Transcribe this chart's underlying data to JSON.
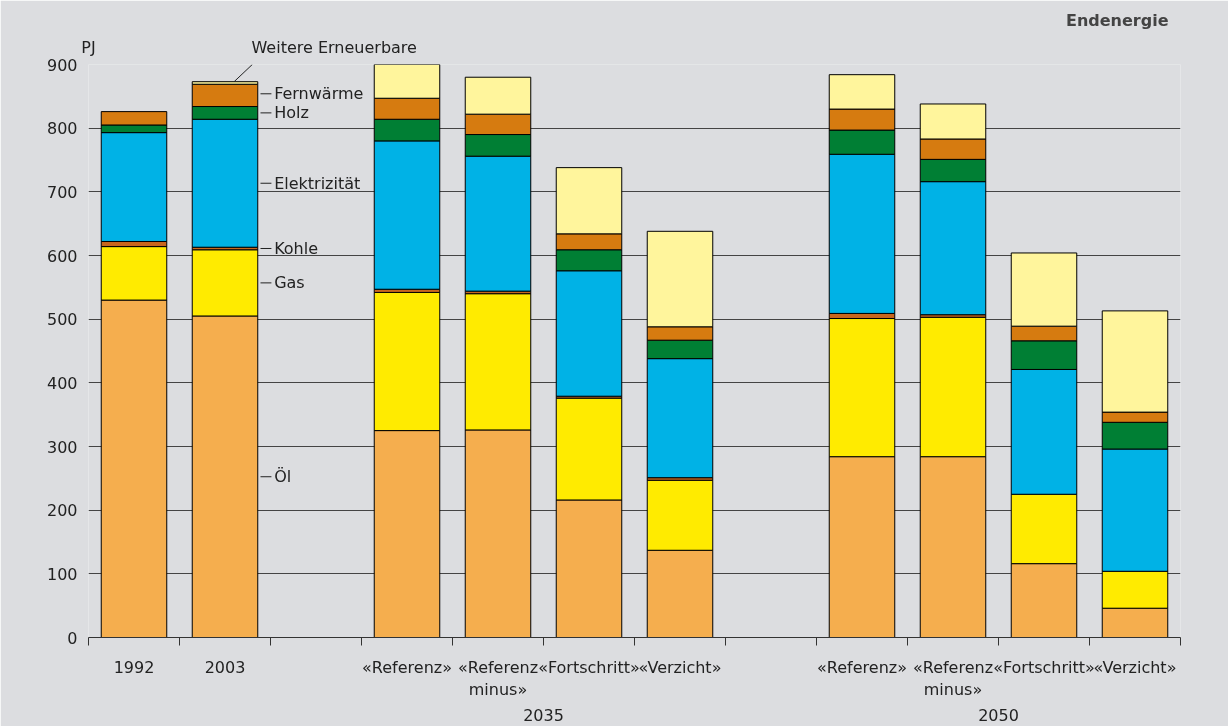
{
  "chart_data": {
    "type": "bar",
    "stacked": true,
    "title": "Endenergie",
    "ylabel": "PJ",
    "categories": [
      "1992",
      "2003",
      null,
      "«Referenz»",
      "«Referenz minus»",
      "«Fortschritt»",
      "«Verzicht»",
      null,
      "«Referenz»",
      "«Referenz minus»",
      "«Fortschritt»",
      "«Verzicht»"
    ],
    "series": [
      {
        "name": "Öl",
        "color": "#f5ae4e",
        "values": [
          530,
          505,
          null,
          325,
          326,
          216,
          137,
          null,
          284,
          284,
          116,
          46
        ]
      },
      {
        "name": "Gas",
        "color": "#ffeb00",
        "values": [
          84,
          104,
          null,
          217,
          214,
          160,
          110,
          null,
          217,
          219,
          109,
          58
        ]
      },
      {
        "name": "Kohle",
        "color": "#c8661e",
        "values": [
          8,
          4,
          null,
          5,
          4,
          3,
          4,
          null,
          8,
          4,
          0,
          0
        ]
      },
      {
        "name": "Elektrizität",
        "color": "#00b2e6",
        "values": [
          171,
          201,
          null,
          233,
          212,
          197,
          187,
          null,
          250,
          209,
          196,
          192
        ]
      },
      {
        "name": "Holz",
        "color": "#007f34",
        "values": [
          12,
          20,
          null,
          34,
          34,
          33,
          29,
          null,
          38,
          35,
          45,
          42
        ]
      },
      {
        "name": "Fernwärme",
        "color": "#d67b10",
        "values": [
          21,
          35,
          null,
          33,
          32,
          25,
          21,
          null,
          33,
          32,
          23,
          16
        ]
      },
      {
        "name": "Weitere Erneuerbare",
        "color": "#fff59c",
        "values": [
          0,
          4,
          null,
          55,
          58,
          104,
          150,
          null,
          54,
          55,
          115,
          159
        ]
      }
    ],
    "ylim": [
      0,
      900
    ],
    "yticks": [
      0,
      100,
      200,
      300,
      400,
      500,
      600,
      700,
      800,
      900
    ],
    "grid": "y",
    "legend": false,
    "annotations": [
      "2035",
      "2050"
    ]
  }
}
